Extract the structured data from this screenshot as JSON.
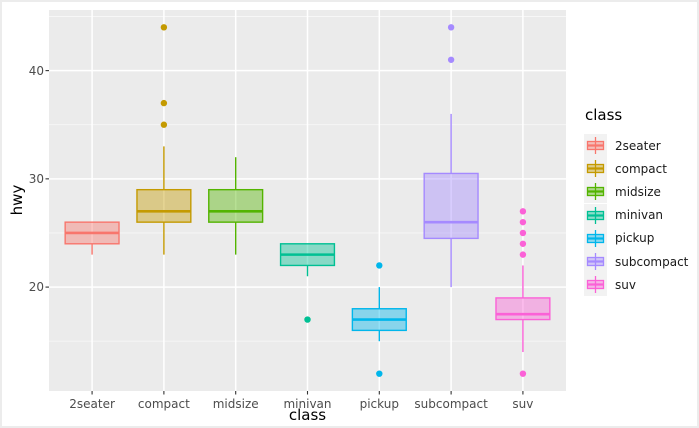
{
  "figure": {
    "background": "#FFFFFF",
    "panel_background": "#EBEBEB",
    "grid_color": "#FFFFFF",
    "tick_color": "#333333",
    "tick_label_color": "#4D4D4D",
    "legend_key_background": "#F2F2F2"
  },
  "chart_data": {
    "type": "boxplot",
    "title": "",
    "xlabel": "class",
    "ylabel": "hwy",
    "categories": [
      "2seater",
      "compact",
      "midsize",
      "minivan",
      "pickup",
      "subcompact",
      "suv"
    ],
    "y_ticks": [
      20,
      30,
      40
    ],
    "y_minor_ticks": [
      15,
      25,
      35,
      45
    ],
    "ylim": [
      10.4,
      45.6
    ],
    "grid": true,
    "legend": {
      "title": "class",
      "position": "right"
    },
    "series": [
      {
        "name": "2seater",
        "color": "#F8766D",
        "whisker_low": 23,
        "q1": 24,
        "median": 25,
        "q3": 26,
        "whisker_high": 26,
        "outliers": []
      },
      {
        "name": "compact",
        "color": "#C49A00",
        "whisker_low": 23,
        "q1": 26,
        "median": 27,
        "q3": 29,
        "whisker_high": 33,
        "outliers": [
          35,
          37,
          44
        ]
      },
      {
        "name": "midsize",
        "color": "#53B400",
        "whisker_low": 23,
        "q1": 26,
        "median": 27,
        "q3": 29,
        "whisker_high": 32,
        "outliers": []
      },
      {
        "name": "minivan",
        "color": "#00C094",
        "whisker_low": 21,
        "q1": 22,
        "median": 23,
        "q3": 24,
        "whisker_high": 24,
        "outliers": [
          17
        ]
      },
      {
        "name": "pickup",
        "color": "#00B6EB",
        "whisker_low": 15,
        "q1": 16,
        "median": 17,
        "q3": 18,
        "whisker_high": 20,
        "outliers": [
          12,
          22
        ]
      },
      {
        "name": "subcompact",
        "color": "#A58AFF",
        "whisker_low": 20,
        "q1": 24.5,
        "median": 26,
        "q3": 30.5,
        "whisker_high": 36,
        "outliers": [
          41,
          44
        ]
      },
      {
        "name": "suv",
        "color": "#FB61D7",
        "whisker_low": 14,
        "q1": 17,
        "median": 17.5,
        "q3": 19,
        "whisker_high": 22,
        "outliers": [
          12,
          23,
          24,
          25,
          26,
          27
        ]
      }
    ]
  }
}
